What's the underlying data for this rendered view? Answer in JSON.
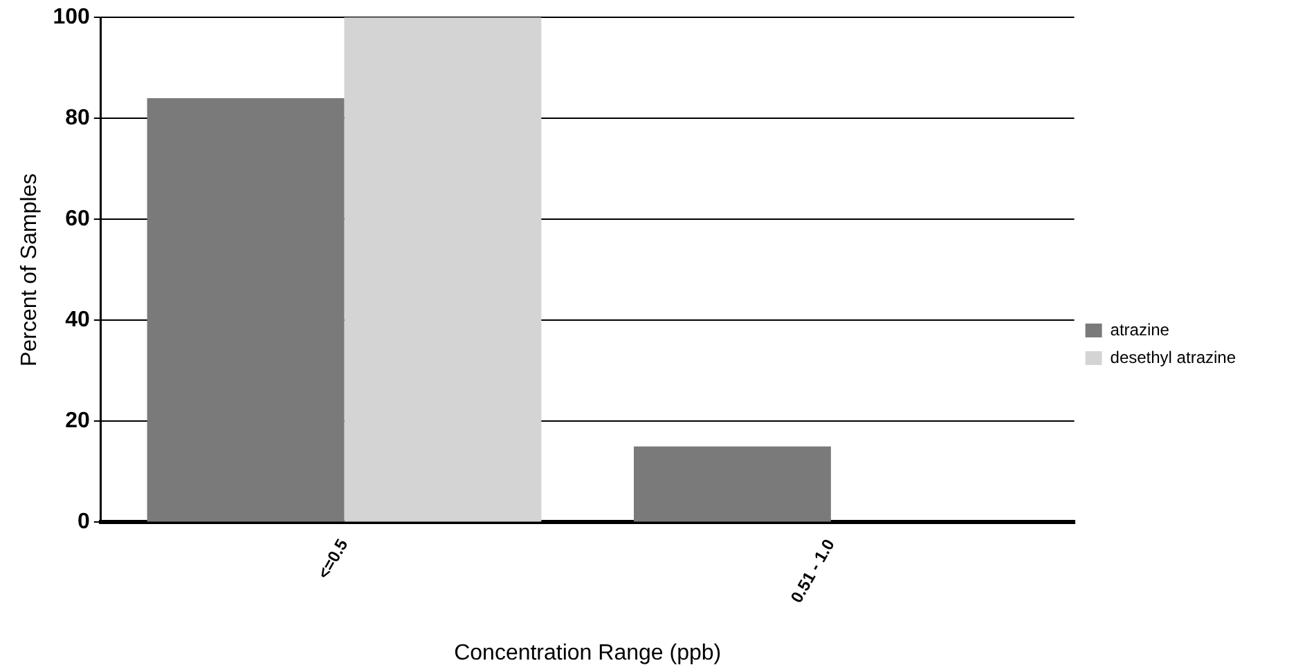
{
  "chart_data": {
    "type": "bar",
    "xlabel": "Concentration Range (ppb)",
    "ylabel": "Percent of Samples",
    "categories": [
      "<=0.5",
      "0.51 - 1.0"
    ],
    "series": [
      {
        "name": "atrazine",
        "color": "#7a7a7a",
        "values": [
          84,
          15
        ]
      },
      {
        "name": "desethyl atrazine",
        "color": "#d4d4d4",
        "values": [
          100,
          0
        ]
      }
    ],
    "ylim": [
      0,
      100
    ],
    "yticks": [
      0,
      20,
      40,
      60,
      80,
      100
    ],
    "grid": "y",
    "legend": "right"
  }
}
